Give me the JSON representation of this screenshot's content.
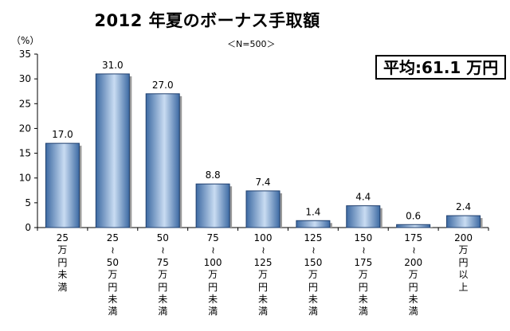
{
  "chart_data": {
    "type": "bar",
    "title": "2012 年夏のボーナス手取額",
    "subtitle": "＜N=500＞",
    "ylabel": "（%）",
    "annotation": "平均:61.1 万円",
    "categories": [
      "25万円未満",
      "25~50万円未満",
      "50~75万円未満",
      "75~100万円未満",
      "100~125万円未満",
      "125~150万円未満",
      "150~175万円未満",
      "175~200万円未満",
      "200万円以上"
    ],
    "values": [
      17.0,
      31.0,
      27.0,
      8.8,
      7.4,
      1.4,
      4.4,
      0.6,
      2.4
    ],
    "value_labels": [
      "17.0",
      "31.0",
      "27.0",
      "8.8",
      "7.4",
      "1.4",
      "4.4",
      "0.6",
      "2.4"
    ],
    "yticks": [
      "0",
      "5",
      "10",
      "15",
      "20",
      "25",
      "30",
      "35"
    ],
    "ylim": [
      0,
      35
    ],
    "grid": false,
    "bar_color": "#6e9fd5",
    "bar_color_dark": "#3d6aa3"
  }
}
